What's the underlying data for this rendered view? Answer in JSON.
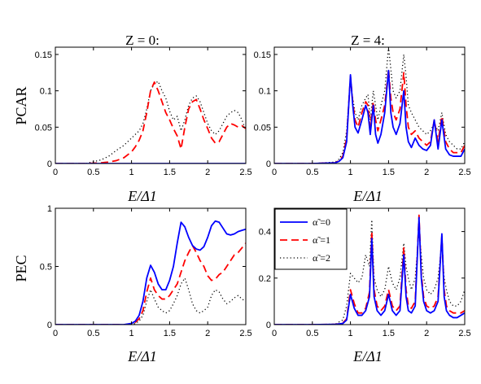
{
  "chart_data": [
    {
      "type": "line",
      "panel": "top-left",
      "title": "Z = 0:",
      "xlabel": "E/Δ1",
      "ylabel": "PCAR",
      "xlim": [
        0,
        2.5
      ],
      "ylim": [
        0,
        0.16
      ],
      "xticks": [
        "0",
        "0.5",
        "1",
        "1.5",
        "2",
        "2.5"
      ],
      "yticks": [
        "0",
        "0.05",
        "0.1",
        "0.15"
      ],
      "x": [
        0,
        0.2,
        0.4,
        0.6,
        0.7,
        0.8,
        0.9,
        1.0,
        1.05,
        1.1,
        1.15,
        1.2,
        1.25,
        1.3,
        1.35,
        1.4,
        1.45,
        1.5,
        1.55,
        1.6,
        1.65,
        1.7,
        1.75,
        1.8,
        1.85,
        1.9,
        1.95,
        2.0,
        2.05,
        2.1,
        2.15,
        2.2,
        2.25,
        2.3,
        2.35,
        2.4,
        2.45,
        2.5
      ],
      "series": [
        {
          "name": "α̃ =0",
          "values": [
            0,
            0,
            0,
            0,
            0,
            0,
            0,
            0,
            0,
            0,
            0,
            0,
            0,
            0,
            0,
            0,
            0,
            0,
            0,
            0,
            0,
            0,
            0,
            0,
            0,
            0,
            0,
            0,
            0,
            0,
            0,
            0,
            0,
            0,
            0,
            0,
            0,
            0
          ]
        },
        {
          "name": "α̃ =1",
          "values": [
            0,
            0,
            0,
            0.001,
            0.002,
            0.004,
            0.008,
            0.016,
            0.023,
            0.032,
            0.045,
            0.07,
            0.1,
            0.112,
            0.1,
            0.085,
            0.07,
            0.06,
            0.048,
            0.038,
            0.02,
            0.05,
            0.075,
            0.085,
            0.088,
            0.075,
            0.06,
            0.048,
            0.035,
            0.028,
            0.03,
            0.04,
            0.05,
            0.055,
            0.053,
            0.05,
            0.052,
            0.048
          ]
        },
        {
          "name": "α̃ =2",
          "values": [
            0,
            0,
            0,
            0.005,
            0.01,
            0.018,
            0.025,
            0.035,
            0.04,
            0.045,
            0.055,
            0.075,
            0.1,
            0.11,
            0.113,
            0.1,
            0.09,
            0.072,
            0.06,
            0.065,
            0.045,
            0.06,
            0.08,
            0.09,
            0.093,
            0.085,
            0.07,
            0.055,
            0.045,
            0.04,
            0.045,
            0.055,
            0.065,
            0.07,
            0.073,
            0.07,
            0.06,
            0.045
          ]
        }
      ]
    },
    {
      "type": "line",
      "panel": "top-right",
      "title": "Z = 4:",
      "xlabel": "E/Δ1",
      "ylabel": "",
      "xlim": [
        0,
        2.5
      ],
      "ylim": [
        0,
        0.16
      ],
      "xticks": [
        "0",
        "0.5",
        "1",
        "1.5",
        "2",
        "2.5"
      ],
      "yticks": [
        "0",
        "0.05",
        "0.1",
        "0.15"
      ],
      "x": [
        0,
        0.5,
        0.8,
        0.85,
        0.9,
        0.95,
        1.0,
        1.03,
        1.06,
        1.1,
        1.15,
        1.2,
        1.23,
        1.26,
        1.3,
        1.33,
        1.36,
        1.4,
        1.45,
        1.5,
        1.53,
        1.56,
        1.6,
        1.65,
        1.7,
        1.73,
        1.76,
        1.8,
        1.85,
        1.9,
        1.95,
        2.0,
        2.05,
        2.1,
        2.15,
        2.2,
        2.25,
        2.3,
        2.35,
        2.4,
        2.45,
        2.5
      ],
      "series": [
        {
          "name": "α̃ =0",
          "values": [
            0,
            0,
            0.001,
            0.003,
            0.008,
            0.03,
            0.122,
            0.08,
            0.05,
            0.042,
            0.06,
            0.08,
            0.07,
            0.04,
            0.08,
            0.04,
            0.028,
            0.04,
            0.07,
            0.128,
            0.07,
            0.05,
            0.04,
            0.055,
            0.1,
            0.05,
            0.03,
            0.022,
            0.035,
            0.025,
            0.02,
            0.018,
            0.025,
            0.06,
            0.02,
            0.06,
            0.02,
            0.012,
            0.01,
            0.01,
            0.01,
            0.02
          ]
        },
        {
          "name": "α̃ =1",
          "values": [
            0,
            0,
            0.001,
            0.004,
            0.01,
            0.035,
            0.12,
            0.085,
            0.06,
            0.05,
            0.07,
            0.085,
            0.08,
            0.05,
            0.085,
            0.06,
            0.045,
            0.06,
            0.08,
            0.13,
            0.09,
            0.07,
            0.06,
            0.075,
            0.125,
            0.08,
            0.05,
            0.04,
            0.045,
            0.035,
            0.03,
            0.025,
            0.03,
            0.06,
            0.03,
            0.065,
            0.03,
            0.02,
            0.015,
            0.015,
            0.015,
            0.025
          ]
        },
        {
          "name": "α̃ =2",
          "values": [
            0,
            0,
            0.002,
            0.006,
            0.015,
            0.045,
            0.115,
            0.09,
            0.07,
            0.06,
            0.08,
            0.09,
            0.095,
            0.06,
            0.1,
            0.08,
            0.06,
            0.08,
            0.1,
            0.16,
            0.13,
            0.1,
            0.09,
            0.1,
            0.15,
            0.12,
            0.08,
            0.07,
            0.06,
            0.05,
            0.045,
            0.04,
            0.045,
            0.055,
            0.045,
            0.07,
            0.04,
            0.03,
            0.025,
            0.02,
            0.02,
            0.03
          ]
        }
      ]
    },
    {
      "type": "line",
      "panel": "bottom-left",
      "title": "",
      "xlabel": "E/Δ1",
      "ylabel": "PEC",
      "xlim": [
        0,
        2.5
      ],
      "ylim": [
        0,
        1
      ],
      "xticks": [
        "0",
        "0.5",
        "1",
        "1.5",
        "2",
        "2.5"
      ],
      "yticks": [
        "0",
        "0.5",
        "1"
      ],
      "x": [
        0,
        0.5,
        0.9,
        1.0,
        1.05,
        1.1,
        1.15,
        1.2,
        1.25,
        1.3,
        1.35,
        1.4,
        1.45,
        1.5,
        1.55,
        1.6,
        1.65,
        1.7,
        1.75,
        1.8,
        1.85,
        1.9,
        1.95,
        2.0,
        2.05,
        2.1,
        2.15,
        2.2,
        2.25,
        2.3,
        2.35,
        2.4,
        2.45,
        2.5
      ],
      "series": [
        {
          "name": "α̃ =0",
          "values": [
            0,
            0,
            0,
            0.01,
            0.03,
            0.08,
            0.2,
            0.4,
            0.51,
            0.45,
            0.35,
            0.3,
            0.3,
            0.38,
            0.5,
            0.7,
            0.88,
            0.84,
            0.75,
            0.68,
            0.65,
            0.64,
            0.67,
            0.75,
            0.85,
            0.89,
            0.88,
            0.83,
            0.78,
            0.77,
            0.78,
            0.8,
            0.81,
            0.82
          ]
        },
        {
          "name": "α̃ =1",
          "values": [
            0,
            0,
            0,
            0.005,
            0.02,
            0.05,
            0.12,
            0.28,
            0.4,
            0.3,
            0.25,
            0.22,
            0.22,
            0.25,
            0.3,
            0.35,
            0.45,
            0.55,
            0.62,
            0.68,
            0.62,
            0.55,
            0.5,
            0.42,
            0.38,
            0.39,
            0.43,
            0.45,
            0.5,
            0.55,
            0.6,
            0.62,
            0.66,
            0.7
          ]
        },
        {
          "name": "α̃ =2",
          "values": [
            0,
            0,
            0,
            0.003,
            0.01,
            0.03,
            0.08,
            0.2,
            0.3,
            0.22,
            0.15,
            0.12,
            0.1,
            0.12,
            0.18,
            0.25,
            0.35,
            0.4,
            0.3,
            0.18,
            0.12,
            0.1,
            0.12,
            0.15,
            0.25,
            0.3,
            0.28,
            0.22,
            0.18,
            0.2,
            0.23,
            0.25,
            0.22,
            0.2
          ]
        }
      ]
    },
    {
      "type": "line",
      "panel": "bottom-right",
      "title": "",
      "xlabel": "E/Δ1",
      "ylabel": "",
      "xlim": [
        0,
        2.5
      ],
      "ylim": [
        0,
        0.5
      ],
      "xticks": [
        "0",
        "0.5",
        "1",
        "1.5",
        "2",
        "2.5"
      ],
      "yticks": [
        "0",
        "0.2",
        "0.4"
      ],
      "legend": "top-left",
      "x": [
        0,
        0.5,
        0.8,
        0.9,
        0.95,
        1.0,
        1.05,
        1.1,
        1.15,
        1.2,
        1.25,
        1.28,
        1.31,
        1.35,
        1.4,
        1.45,
        1.5,
        1.55,
        1.6,
        1.65,
        1.7,
        1.73,
        1.76,
        1.8,
        1.85,
        1.9,
        1.93,
        1.96,
        2.0,
        2.05,
        2.1,
        2.15,
        2.2,
        2.23,
        2.26,
        2.3,
        2.35,
        2.4,
        2.45,
        2.5
      ],
      "series": [
        {
          "name": "α̃ =0",
          "values": [
            0,
            0,
            0.001,
            0.005,
            0.02,
            0.13,
            0.07,
            0.04,
            0.04,
            0.06,
            0.12,
            0.37,
            0.12,
            0.06,
            0.04,
            0.06,
            0.13,
            0.06,
            0.04,
            0.06,
            0.3,
            0.12,
            0.06,
            0.05,
            0.08,
            0.46,
            0.2,
            0.1,
            0.06,
            0.05,
            0.06,
            0.1,
            0.39,
            0.12,
            0.06,
            0.04,
            0.03,
            0.03,
            0.04,
            0.05
          ]
        },
        {
          "name": "α̃ =1",
          "values": [
            0,
            0,
            0.001,
            0.007,
            0.025,
            0.15,
            0.09,
            0.05,
            0.05,
            0.07,
            0.14,
            0.4,
            0.15,
            0.08,
            0.06,
            0.08,
            0.15,
            0.08,
            0.06,
            0.08,
            0.33,
            0.15,
            0.08,
            0.07,
            0.1,
            0.47,
            0.22,
            0.12,
            0.08,
            0.07,
            0.08,
            0.12,
            0.38,
            0.15,
            0.08,
            0.06,
            0.05,
            0.05,
            0.05,
            0.06
          ]
        },
        {
          "name": "α̃ =2",
          "values": [
            0,
            0,
            0.002,
            0.02,
            0.08,
            0.22,
            0.2,
            0.18,
            0.2,
            0.3,
            0.25,
            0.45,
            0.2,
            0.15,
            0.12,
            0.15,
            0.25,
            0.18,
            0.15,
            0.2,
            0.35,
            0.25,
            0.2,
            0.15,
            0.2,
            0.4,
            0.3,
            0.2,
            0.15,
            0.13,
            0.15,
            0.2,
            0.35,
            0.2,
            0.15,
            0.1,
            0.08,
            0.08,
            0.1,
            0.15
          ]
        }
      ]
    }
  ],
  "style": {
    "series_colors": [
      "#0000ff",
      "#ff0000",
      "#000000"
    ],
    "series_dash": [
      "",
      "9,5",
      "1.2,3"
    ]
  }
}
